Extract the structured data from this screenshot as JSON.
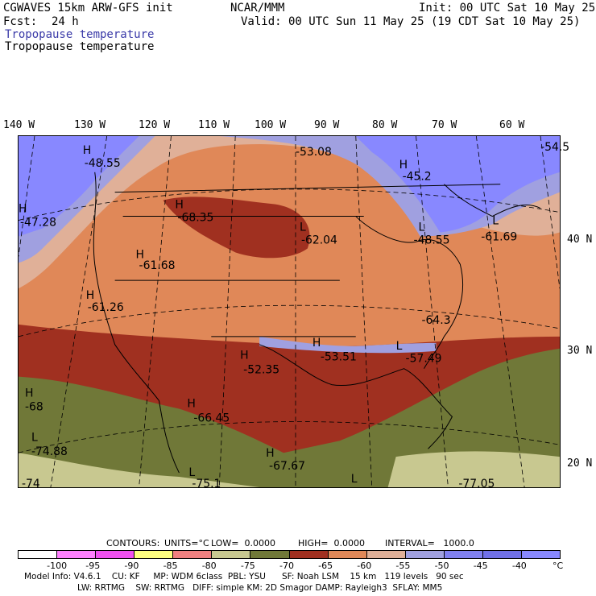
{
  "header": {
    "model": "CGWAVES 15km ARW-GFS init",
    "org": "NCAR/MMM",
    "init": "Init: 00 UTC Sat 10 May 25",
    "fcst_label": "Fcst:",
    "fcst_value": "24 h",
    "valid": "Valid: 00 UTC Sun 11 May 25 (19 CDT Sat 10 May 25)",
    "field_title_1": "Tropopause temperature",
    "field_title_2": "Tropopause temperature"
  },
  "lon_labels": [
    "140 W",
    "130 W",
    "120 W",
    "110 W",
    "100 W",
    "90 W",
    "80 W",
    "70 W",
    "60 W"
  ],
  "lat_labels": [
    "40 N",
    "30 N",
    "20 N"
  ],
  "map_labels": [
    {
      "sym": "H",
      "val": "-48.55"
    },
    {
      "sym": "H",
      "val": "-47.28"
    },
    {
      "sym": "",
      "val": "-53.08"
    },
    {
      "sym": "H",
      "val": "-45.2"
    },
    {
      "sym": "",
      "val": "-54.5"
    },
    {
      "sym": "H",
      "val": "-68.35"
    },
    {
      "sym": "L",
      "val": "-62.04"
    },
    {
      "sym": "L",
      "val": "-48.55"
    },
    {
      "sym": "L",
      "val": "-61.69"
    },
    {
      "sym": "H",
      "val": "-61.68"
    },
    {
      "sym": "H",
      "val": "-61.26"
    },
    {
      "sym": "",
      "val": "-64.3"
    },
    {
      "sym": "H",
      "val": "-52.35"
    },
    {
      "sym": "H",
      "val": "-53.51"
    },
    {
      "sym": "L",
      "val": "-57.49"
    },
    {
      "sym": "H",
      "val": "-68"
    },
    {
      "sym": "H",
      "val": "-66.45"
    },
    {
      "sym": "L",
      "val": "-74.88"
    },
    {
      "sym": "H",
      "val": "-67.67"
    },
    {
      "sym": "L",
      "val": "-75.1"
    },
    {
      "sym": "L",
      "val": "-77.05"
    },
    {
      "sym": "",
      "val": "-74"
    }
  ],
  "contour_info": {
    "contours_label": "CONTOURS:",
    "units": "UNITS=°C",
    "low": "LOW=  0.0000",
    "high": "HIGH=  0.0000",
    "interval": "INTERVAL=   1000.0"
  },
  "colorbar": {
    "colors": [
      "#ffffff",
      "#ff80ff",
      "#f050f0",
      "#ffff80",
      "#f08080",
      "#c8c890",
      "#707838",
      "#a03020",
      "#e08858",
      "#e0b098",
      "#a0a0e0",
      "#8080f0",
      "#7070e8",
      "#8888ff"
    ],
    "ticks": [
      "-100",
      "-95",
      "-90",
      "-85",
      "-80",
      "-75",
      "-70",
      "-65",
      "-60",
      "-55",
      "-50",
      "-45",
      "-40"
    ],
    "unit": "°C"
  },
  "model_info": {
    "line1": "Model Info: V4.6.1    CU: KF     MP: WDM 6class  PBL: YSU      SF: Noah LSM    15 km   119 levels   90 sec",
    "line2": "LW: RRTMG    SW: RRTMG   DIFF: simple KM: 2D Smagor DAMP: Rayleigh3  SFLAY: MM5"
  }
}
